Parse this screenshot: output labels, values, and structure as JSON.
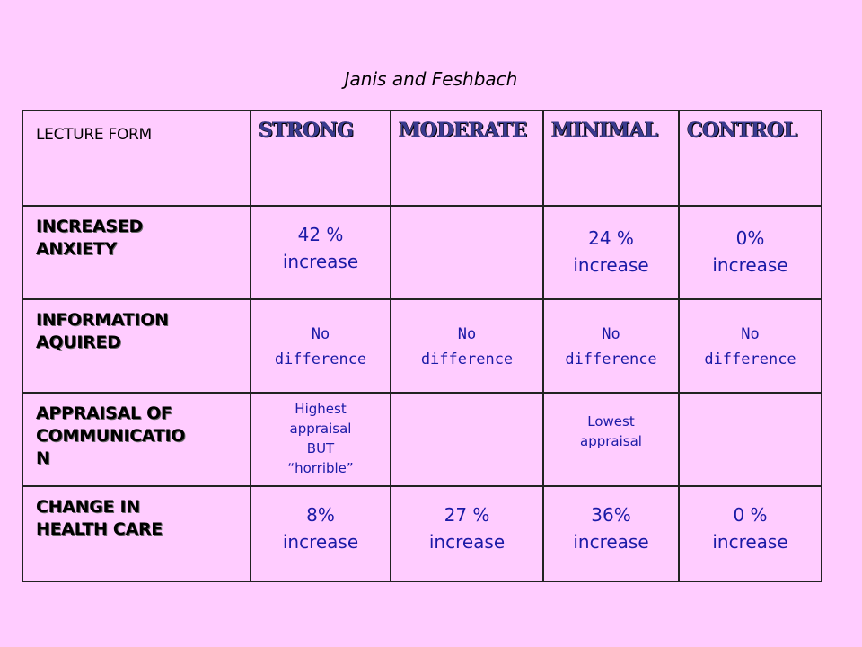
{
  "subtitle": "Janis and Feshbach",
  "table": {
    "corner": "LECTURE FORM",
    "columns": [
      "STRONG",
      "MODERATE",
      "MINIMAL",
      "CONTROL"
    ],
    "rows": [
      {
        "label": [
          "INCREASED",
          "ANXIETY"
        ],
        "cells": [
          [
            "42 %",
            "increase"
          ],
          [],
          [
            "24 %",
            "increase"
          ],
          [
            "0%",
            "increase"
          ]
        ]
      },
      {
        "label": [
          "INFORMATION",
          "AQUIRED"
        ],
        "cells": [
          [
            "No",
            "difference"
          ],
          [
            "No",
            "difference"
          ],
          [
            "No",
            "difference"
          ],
          [
            "No",
            "difference"
          ]
        ]
      },
      {
        "label": [
          "APPRAISAL OF",
          "COMMUNICATIO",
          "N"
        ],
        "cells": [
          [
            "Highest",
            "appraisal",
            "BUT",
            "“horrible”"
          ],
          [],
          [
            "Lowest",
            "appraisal"
          ],
          []
        ]
      },
      {
        "label": [
          "CHANGE IN",
          "HEALTH CARE"
        ],
        "cells": [
          [
            "8%",
            "increase"
          ],
          [
            "27 %",
            "increase"
          ],
          [
            "36%",
            "increase"
          ],
          [
            "0 %",
            "increase"
          ]
        ]
      }
    ]
  }
}
